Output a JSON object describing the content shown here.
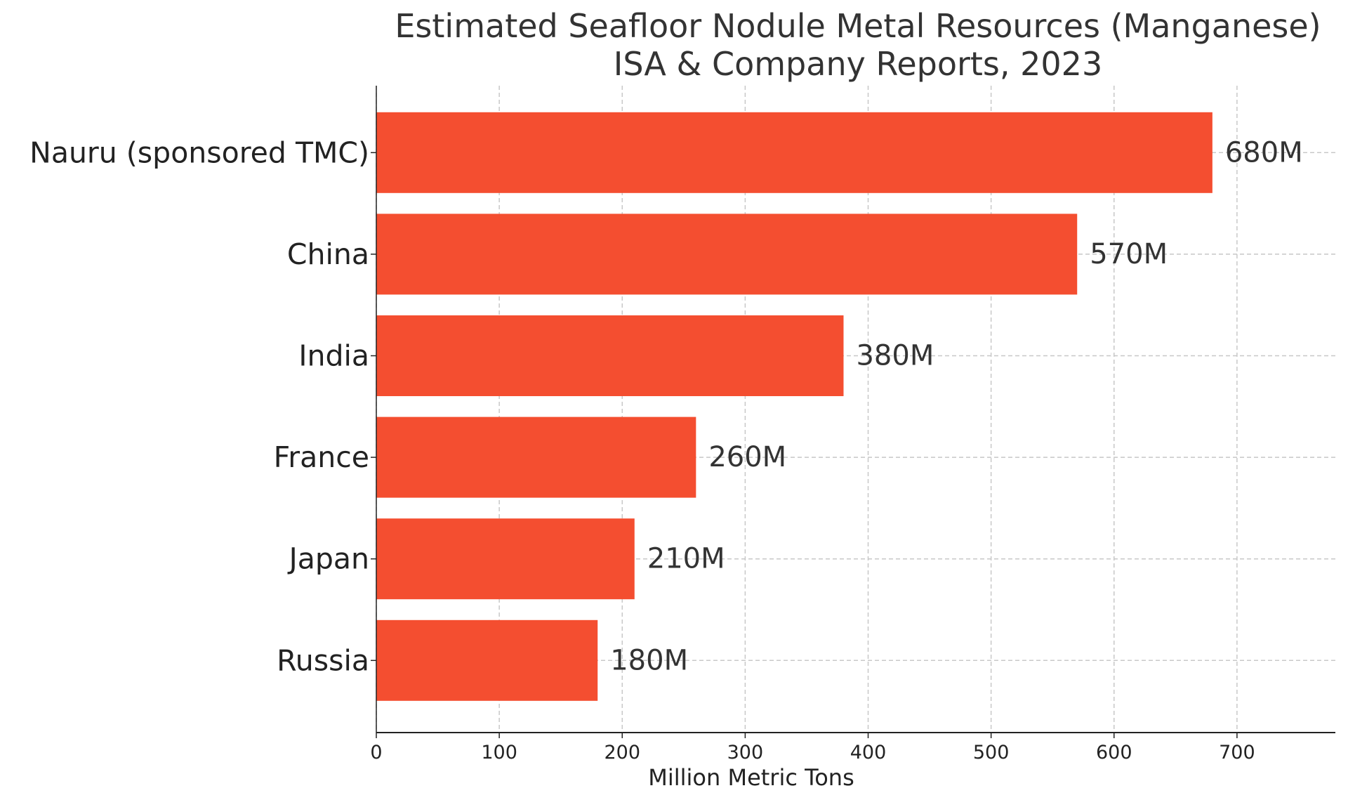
{
  "chart_data": {
    "type": "bar",
    "orientation": "horizontal",
    "title": "Estimated Seafloor Nodule Metal Resources (Manganese)",
    "subtitle": "ISA & Company Reports, 2023",
    "xlabel": "Million Metric Tons",
    "ylabel": "",
    "categories": [
      "Nauru (sponsored TMC)",
      "China",
      "India",
      "France",
      "Japan",
      "Russia"
    ],
    "values": [
      680,
      570,
      380,
      260,
      210,
      180
    ],
    "value_labels": [
      "680M",
      "570M",
      "380M",
      "260M",
      "210M",
      "180M"
    ],
    "xlim": [
      0,
      780
    ],
    "xticks": [
      0,
      100,
      200,
      300,
      400,
      500,
      600,
      700
    ],
    "xtick_labels": [
      "0",
      "100",
      "200",
      "300",
      "400",
      "500",
      "600",
      "700"
    ],
    "grid": true,
    "bar_color": "#f44e30"
  }
}
